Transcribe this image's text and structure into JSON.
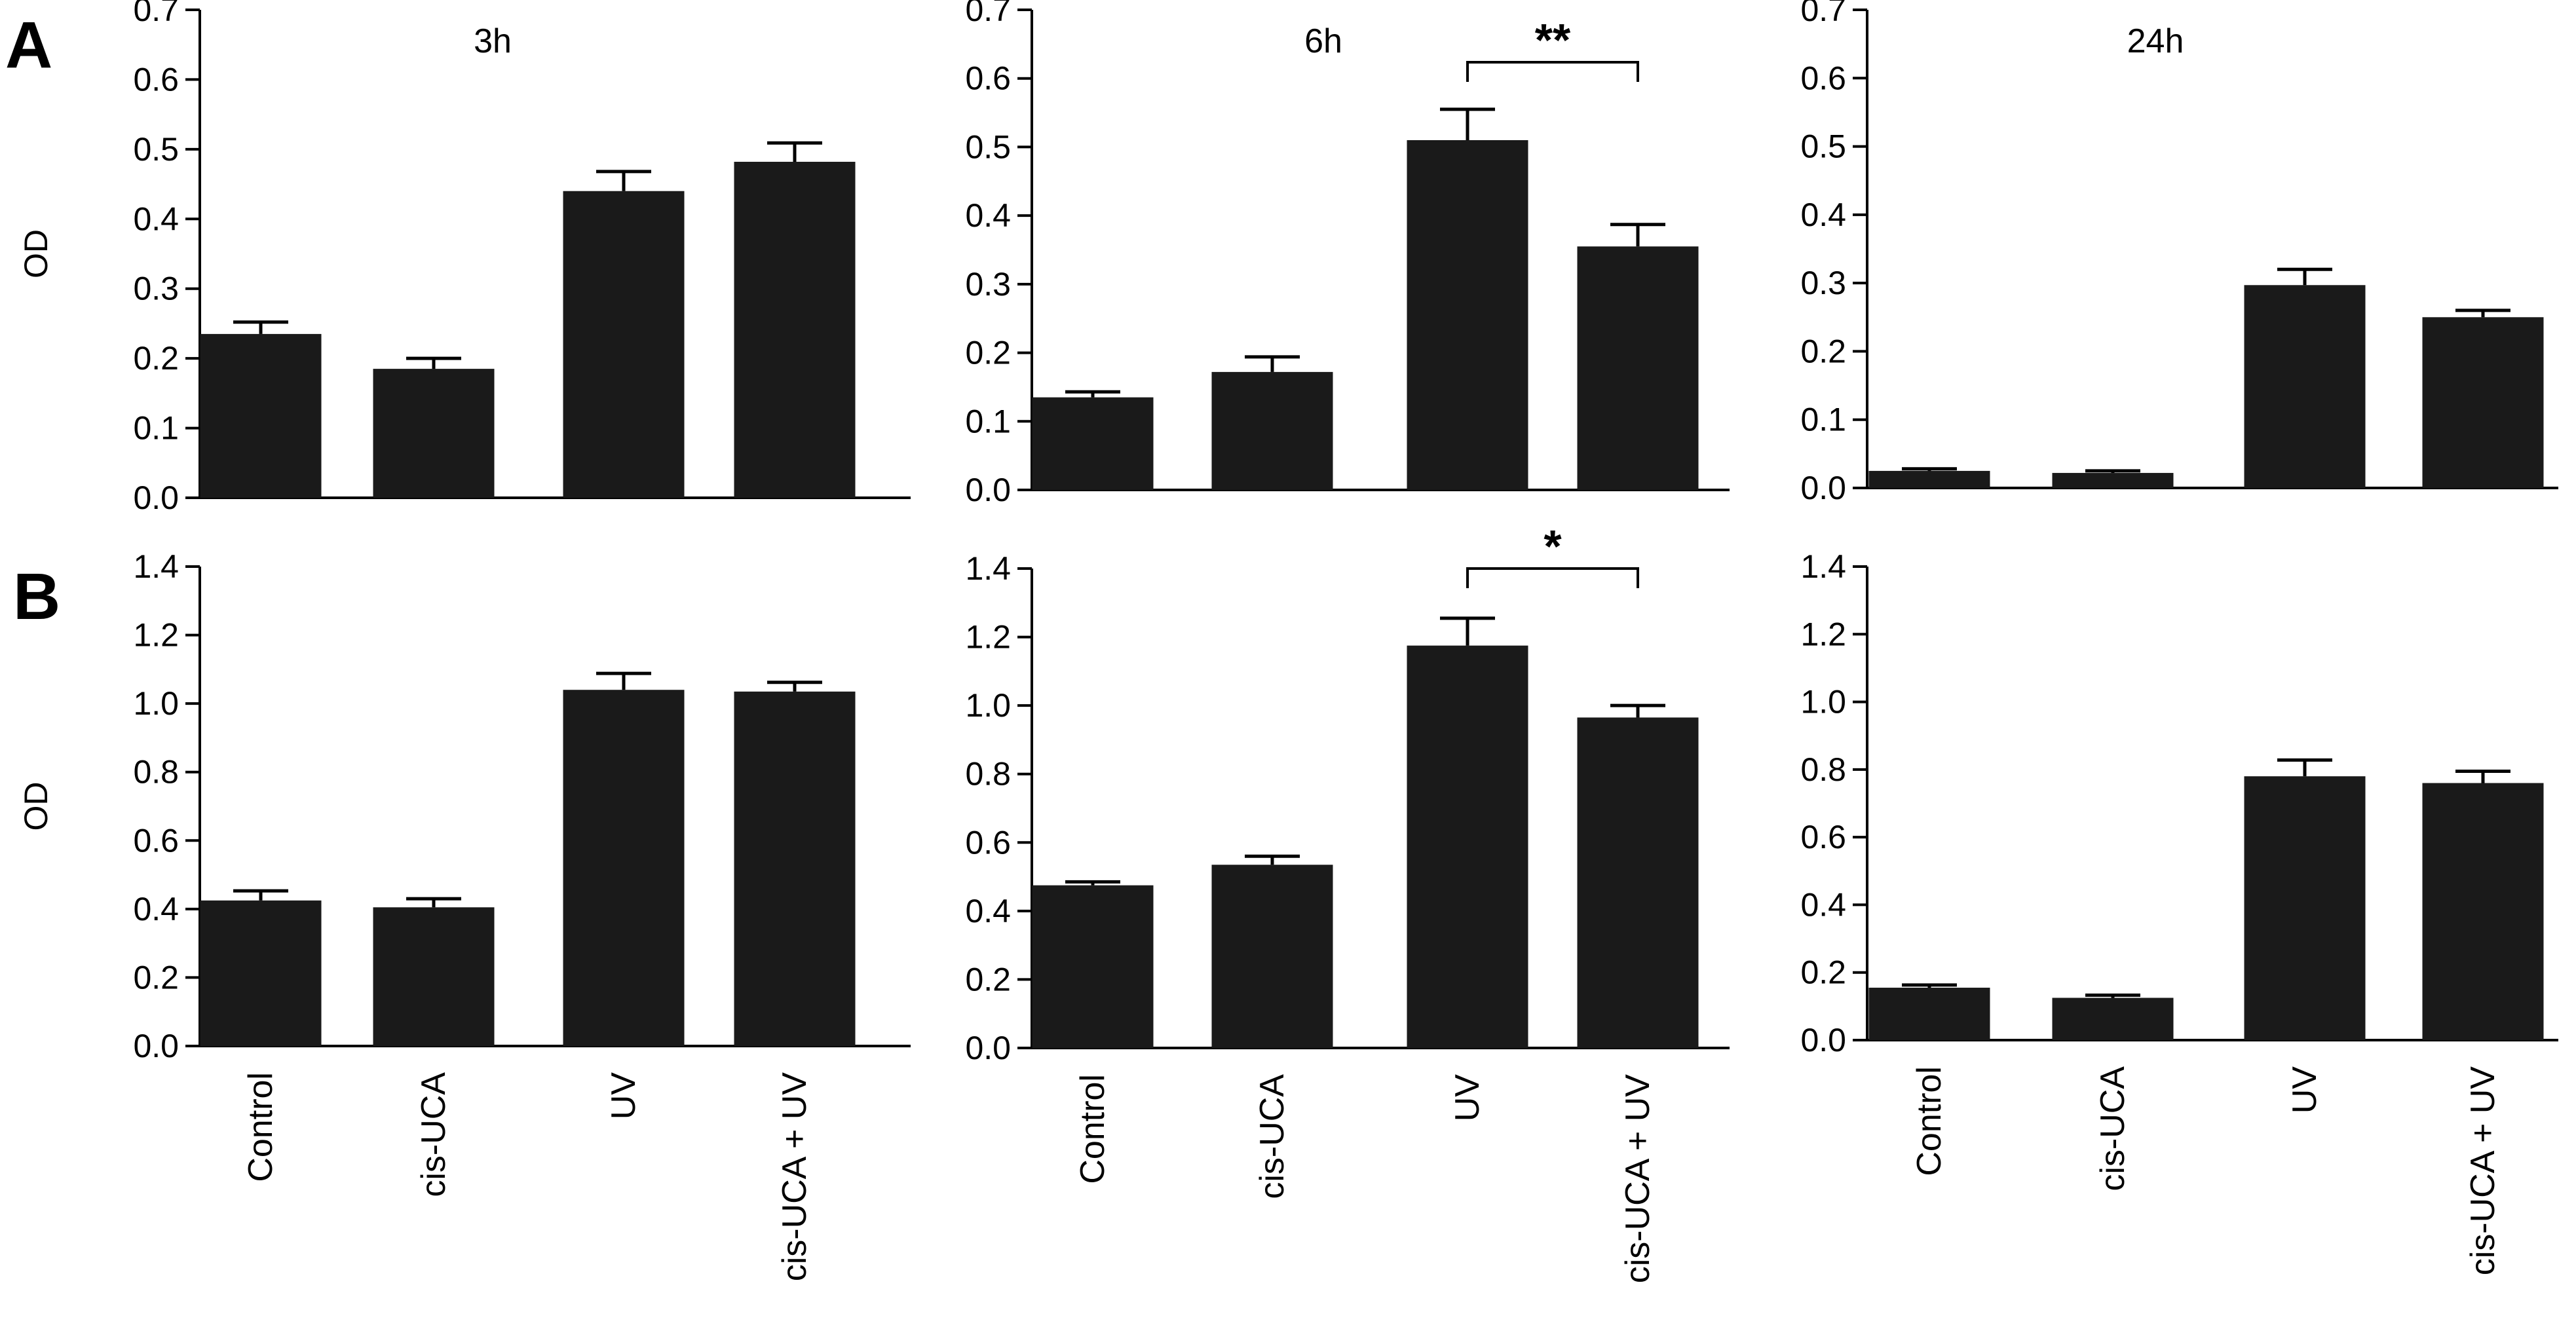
{
  "figure": {
    "categories": [
      "Control",
      "cis-UCA",
      "UV",
      "cis-UCA + UV"
    ],
    "bar_color": "#1a1a1a"
  },
  "panel_letters": [
    "A",
    "B"
  ],
  "chart_data": [
    {
      "type": "bar",
      "row": "A",
      "title": "3h",
      "ylabel": "OD",
      "ylim": [
        0,
        0.7
      ],
      "yticks": [
        "0.0",
        "0.1",
        "0.2",
        "0.3",
        "0.4",
        "0.5",
        "0.6",
        "0.7"
      ],
      "categories": [
        "Control",
        "cis-UCA",
        "UV",
        "cis-UCA + UV"
      ],
      "values": [
        0.235,
        0.185,
        0.44,
        0.482
      ],
      "errors": [
        0.017,
        0.015,
        0.028,
        0.027
      ],
      "significance": null
    },
    {
      "type": "bar",
      "row": "A",
      "title": "6h",
      "ylabel": "",
      "ylim": [
        0,
        0.7
      ],
      "yticks": [
        "0.0",
        "0.1",
        "0.2",
        "0.3",
        "0.4",
        "0.5",
        "0.6",
        "0.7"
      ],
      "categories": [
        "Control",
        "cis-UCA",
        "UV",
        "cis-UCA + UV"
      ],
      "values": [
        0.135,
        0.172,
        0.51,
        0.355
      ],
      "errors": [
        0.008,
        0.022,
        0.045,
        0.032
      ],
      "significance": {
        "from": 2,
        "to": 3,
        "label": "**"
      }
    },
    {
      "type": "bar",
      "row": "A",
      "title": "24h",
      "ylabel": "",
      "ylim": [
        0,
        0.7
      ],
      "yticks": [
        "0.0",
        "0.1",
        "0.2",
        "0.3",
        "0.4",
        "0.5",
        "0.6",
        "0.7"
      ],
      "categories": [
        "Control",
        "cis-UCA",
        "UV",
        "cis-UCA + UV"
      ],
      "values": [
        0.025,
        0.022,
        0.297,
        0.25
      ],
      "errors": [
        0.003,
        0.003,
        0.023,
        0.01
      ],
      "significance": null
    },
    {
      "type": "bar",
      "row": "B",
      "title": "",
      "ylabel": "OD",
      "ylim": [
        0,
        1.4
      ],
      "yticks": [
        "0.0",
        "0.2",
        "0.4",
        "0.6",
        "0.8",
        "1.0",
        "1.2",
        "1.4"
      ],
      "categories": [
        "Control",
        "cis-UCA",
        "UV",
        "cis-UCA + UV"
      ],
      "values": [
        0.425,
        0.405,
        1.04,
        1.035
      ],
      "errors": [
        0.028,
        0.025,
        0.048,
        0.027
      ],
      "significance": null
    },
    {
      "type": "bar",
      "row": "B",
      "title": "",
      "ylabel": "",
      "ylim": [
        0,
        1.4
      ],
      "yticks": [
        "0.0",
        "0.2",
        "0.4",
        "0.6",
        "0.8",
        "1.0",
        "1.2",
        "1.4"
      ],
      "categories": [
        "Control",
        "cis-UCA",
        "UV",
        "cis-UCA + UV"
      ],
      "values": [
        0.475,
        0.535,
        1.175,
        0.965
      ],
      "errors": [
        0.01,
        0.025,
        0.08,
        0.035
      ],
      "significance": {
        "from": 2,
        "to": 3,
        "label": "*"
      }
    },
    {
      "type": "bar",
      "row": "B",
      "title": "",
      "ylabel": "",
      "ylim": [
        0,
        1.4
      ],
      "yticks": [
        "0.0",
        "0.2",
        "0.4",
        "0.6",
        "0.8",
        "1.0",
        "1.2",
        "1.4"
      ],
      "categories": [
        "Control",
        "cis-UCA",
        "UV",
        "cis-UCA + UV"
      ],
      "values": [
        0.155,
        0.125,
        0.78,
        0.76
      ],
      "errors": [
        0.008,
        0.008,
        0.048,
        0.035
      ],
      "significance": null
    }
  ]
}
